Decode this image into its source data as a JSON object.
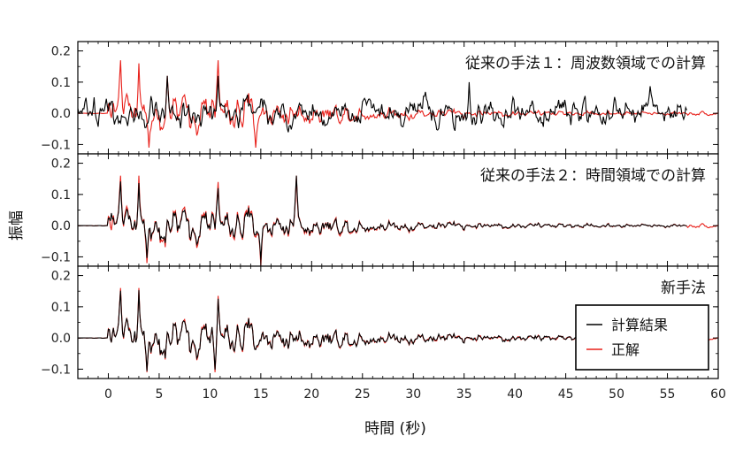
{
  "chart_data": {
    "type": "line",
    "xlabel": "時間 (秒)",
    "ylabel": "振幅",
    "xlim": [
      -3,
      60
    ],
    "ylim": [
      -0.13,
      0.23
    ],
    "xticks": [
      0,
      5,
      10,
      15,
      20,
      25,
      30,
      35,
      40,
      45,
      50,
      55,
      60
    ],
    "yticks": [
      -0.1,
      0.0,
      0.1,
      0.2
    ],
    "ytick_labels": [
      "−0.1",
      "0.0",
      "0.1",
      "0.2"
    ],
    "xtick_labels": [
      "0",
      "5",
      "10",
      "15",
      "20",
      "25",
      "30",
      "35",
      "40",
      "45",
      "50",
      "55",
      "60"
    ],
    "grid": false,
    "legend": {
      "placement": "lower-right of bottom panel",
      "entries": [
        {
          "label": "計算結果",
          "color": "#000000"
        },
        {
          "label": "正解",
          "color": "#e8201a"
        }
      ]
    },
    "panels": [
      {
        "title": "従来の手法１：周波数領域での計算",
        "series": [
          {
            "name": "計算結果",
            "color": "#000000",
            "kind": "noisy",
            "x_range": [
              -3,
              57
            ],
            "amplitude": 0.06
          },
          {
            "name": "正解",
            "color": "#e8201a",
            "kind": "reference",
            "x_range": [
              -3,
              60
            ]
          }
        ],
        "peaks": [
          {
            "x": 1.2,
            "y": 0.17
          },
          {
            "x": 3.0,
            "y": 0.16
          },
          {
            "x": 5.8,
            "y": 0.12
          },
          {
            "x": 10.8,
            "y": 0.17
          },
          {
            "x": 4.0,
            "y": -0.11
          },
          {
            "x": 14.5,
            "y": -0.11
          }
        ]
      },
      {
        "title": "従来の手法２：時間領域での計算",
        "series": [
          {
            "name": "計算結果",
            "color": "#000000",
            "kind": "decaying",
            "x_range": [
              -3,
              57
            ]
          },
          {
            "name": "正解",
            "color": "#e8201a",
            "kind": "reference",
            "x_range": [
              -3,
              60
            ]
          }
        ],
        "peaks": [
          {
            "x": 1.2,
            "y": 0.16
          },
          {
            "x": 3.0,
            "y": 0.16
          },
          {
            "x": 10.8,
            "y": 0.14
          },
          {
            "x": 18.5,
            "y": 0.16
          },
          {
            "x": 3.8,
            "y": -0.12
          },
          {
            "x": 15.0,
            "y": -0.13
          }
        ]
      },
      {
        "title": "新手法",
        "series": [
          {
            "name": "計算結果",
            "color": "#000000",
            "kind": "matching",
            "x_range": [
              -3,
              57
            ]
          },
          {
            "name": "正解",
            "color": "#e8201a",
            "kind": "reference",
            "x_range": [
              -3,
              60
            ]
          }
        ],
        "peaks": [
          {
            "x": 1.2,
            "y": 0.16
          },
          {
            "x": 3.0,
            "y": 0.16
          },
          {
            "x": 10.8,
            "y": 0.16
          },
          {
            "x": 3.8,
            "y": -0.11
          },
          {
            "x": 10.5,
            "y": -0.11
          }
        ]
      }
    ]
  }
}
